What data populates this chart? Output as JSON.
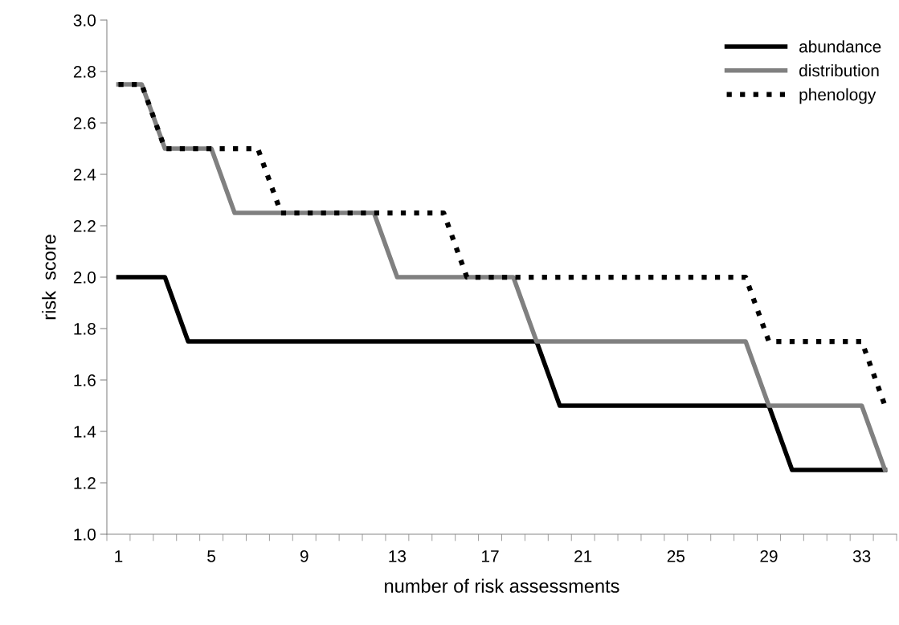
{
  "chart_data": {
    "type": "line",
    "xlabel": "number of risk assessments",
    "ylabel": "risk  score",
    "categories": [
      "1",
      null,
      null,
      null,
      "5",
      null,
      null,
      null,
      "9",
      null,
      null,
      null,
      "13",
      null,
      null,
      null,
      "17",
      null,
      null,
      null,
      "21",
      null,
      null,
      null,
      "25",
      null,
      null,
      null,
      "29",
      null,
      null,
      null,
      "33",
      null
    ],
    "ylim": [
      1.0,
      3.0
    ],
    "yticks": [
      {
        "value": 1.0,
        "label": "1.0"
      },
      {
        "value": 1.2,
        "label": "1.2"
      },
      {
        "value": 1.4,
        "label": "1.4"
      },
      {
        "value": 1.6,
        "label": "1.6"
      },
      {
        "value": 1.8,
        "label": "1.8"
      },
      {
        "value": 2.0,
        "label": "2.0"
      },
      {
        "value": 2.2,
        "label": "2.2"
      },
      {
        "value": 2.4,
        "label": "2.4"
      },
      {
        "value": 2.6,
        "label": "2.6"
      },
      {
        "value": 2.8,
        "label": "2.8"
      },
      {
        "value": 3.0,
        "label": "3.0"
      }
    ],
    "grid": false,
    "legend": "top right",
    "marker": "none",
    "series": [
      {
        "name": "abundance",
        "color": "#000000",
        "line_style": "solid",
        "values": [
          2.0,
          2.0,
          2.0,
          1.75,
          1.75,
          1.75,
          1.75,
          1.75,
          1.75,
          1.75,
          1.75,
          1.75,
          1.75,
          1.75,
          1.75,
          1.75,
          1.75,
          1.75,
          1.75,
          1.5,
          1.5,
          1.5,
          1.5,
          1.5,
          1.5,
          1.5,
          1.5,
          1.5,
          1.5,
          1.25,
          1.25,
          1.25,
          1.25,
          1.25
        ]
      },
      {
        "name": "distribution",
        "color": "#808080",
        "line_style": "solid",
        "values": [
          2.75,
          2.75,
          2.5,
          2.5,
          2.5,
          2.25,
          2.25,
          2.25,
          2.25,
          2.25,
          2.25,
          2.25,
          2.0,
          2.0,
          2.0,
          2.0,
          2.0,
          2.0,
          1.75,
          1.75,
          1.75,
          1.75,
          1.75,
          1.75,
          1.75,
          1.75,
          1.75,
          1.75,
          1.5,
          1.5,
          1.5,
          1.5,
          1.5,
          1.25
        ]
      },
      {
        "name": "phenology",
        "color": "#000000",
        "line_style": "dotted",
        "values": [
          2.75,
          2.75,
          2.5,
          2.5,
          2.5,
          2.5,
          2.5,
          2.25,
          2.25,
          2.25,
          2.25,
          2.25,
          2.25,
          2.25,
          2.25,
          2.0,
          2.0,
          2.0,
          2.0,
          2.0,
          2.0,
          2.0,
          2.0,
          2.0,
          2.0,
          2.0,
          2.0,
          2.0,
          1.75,
          1.75,
          1.75,
          1.75,
          1.75,
          1.5
        ]
      }
    ]
  }
}
